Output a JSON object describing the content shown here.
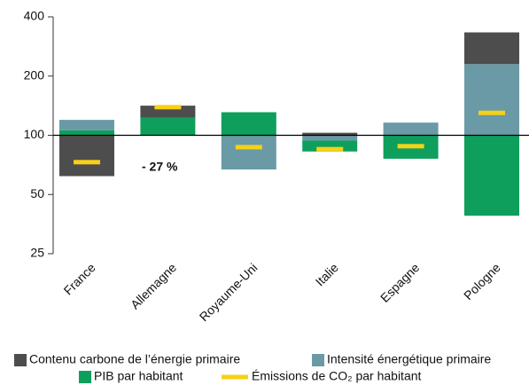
{
  "chart_data": {
    "type": "bar",
    "log_scale": true,
    "categories": [
      "France",
      "Allemagne",
      "Royaume-Uni",
      "Italie",
      "Espagne",
      "Pologne"
    ],
    "series": [
      {
        "name": "Contenu carbone de l’énergie primaire",
        "color": "#4d4d4d",
        "values": [
          62,
          115,
          100,
          103,
          100,
          145
        ]
      },
      {
        "name": "Intensité énergétique primaire",
        "color": "#6a9aa6",
        "values": [
          113,
          100,
          67,
          94,
          116,
          230
        ]
      },
      {
        "name": "PIB par habitant",
        "color": "#0e9f5c",
        "values": [
          106,
          123,
          131,
          88,
          76,
          39
        ]
      },
      {
        "name": "Émissions de CO₂ par habitant",
        "color": "#f7d117",
        "values": [
          73,
          139,
          87,
          85,
          88,
          130
        ]
      }
    ],
    "annotation": "- 27 %",
    "ylim": [
      25,
      400
    ],
    "yticks": [
      25,
      50,
      100,
      200,
      400
    ]
  }
}
